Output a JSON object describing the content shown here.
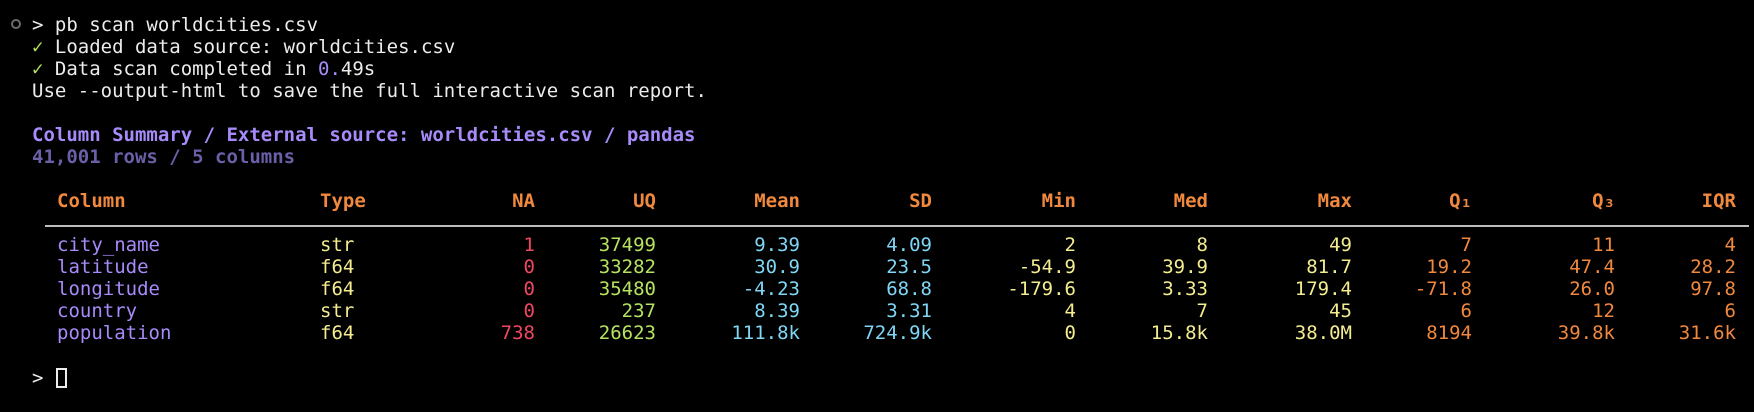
{
  "terminal": {
    "prompt_symbol": ">",
    "command": "pb scan worldcities.csv",
    "check_mark": "✓",
    "loaded_msg": "Loaded data source: worldcities.csv",
    "scan_msg_prefix": "Data scan completed in ",
    "scan_time_int": "0.",
    "scan_time_frac": "49s",
    "hint": "Use --output-html to save the full interactive scan report."
  },
  "summary": {
    "title": "Column Summary / External source: worldcities.csv / pandas",
    "subtitle": "41,001 rows / 5 columns"
  },
  "table": {
    "headers": {
      "column": "Column",
      "type": "Type",
      "na": "NA",
      "uq": "UQ",
      "mean": "Mean",
      "sd": "SD",
      "min": "Min",
      "med": "Med",
      "max": "Max",
      "q1": "Q₁",
      "q3": "Q₃",
      "iqr": "IQR"
    },
    "rows": [
      {
        "column": "city_name",
        "type": "str",
        "na": "1",
        "uq": "37499",
        "mean": "9.39",
        "sd": "4.09",
        "min": "2",
        "med": "8",
        "max": "49",
        "q1": "7",
        "q3": "11",
        "iqr": "4"
      },
      {
        "column": "latitude",
        "type": "f64",
        "na": "0",
        "uq": "33282",
        "mean": "30.9",
        "sd": "23.5",
        "min": "-54.9",
        "med": "39.9",
        "max": "81.7",
        "q1": "19.2",
        "q3": "47.4",
        "iqr": "28.2"
      },
      {
        "column": "longitude",
        "type": "f64",
        "na": "0",
        "uq": "35480",
        "mean": "-4.23",
        "sd": "68.8",
        "min": "-179.6",
        "med": "3.33",
        "max": "179.4",
        "q1": "-71.8",
        "q3": "26.0",
        "iqr": "97.8"
      },
      {
        "column": "country",
        "type": "str",
        "na": "0",
        "uq": "237",
        "mean": "8.39",
        "sd": "3.31",
        "min": "4",
        "med": "7",
        "max": "45",
        "q1": "6",
        "q3": "12",
        "iqr": "6"
      },
      {
        "column": "population",
        "type": "f64",
        "na": "738",
        "uq": "26623",
        "mean": "111.8k",
        "sd": "724.9k",
        "min": "0",
        "med": "15.8k",
        "max": "38.0M",
        "q1": "8194",
        "q3": "39.8k",
        "iqr": "31.6k"
      }
    ]
  },
  "colors": {
    "background": "#000000",
    "header": "#f0883e",
    "accent_purple": "#a78bfa",
    "check_green": "#b5e35f",
    "na_red": "#f0475f",
    "cyan": "#7fd6f5",
    "yellow": "#f3ed8f"
  }
}
